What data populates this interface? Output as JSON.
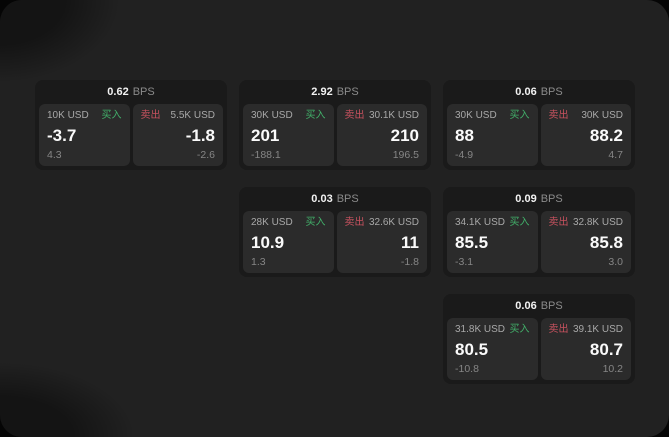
{
  "labels": {
    "bps_unit": "BPS",
    "buy": "买入",
    "sell": "卖出"
  },
  "colors": {
    "window_bg": "#212121",
    "card_bg": "#1a1a1a",
    "panel_bg": "#2b2b2b",
    "buy_accent": "#42b06a",
    "sell_accent": "#c8525f"
  },
  "cards": [
    {
      "bps": "0.62",
      "buy": {
        "amount": "10K USD",
        "price": "-3.7",
        "delta": "4.3"
      },
      "sell": {
        "amount": "5.5K USD",
        "price": "-1.8",
        "delta": "-2.6"
      }
    },
    {
      "bps": "2.92",
      "buy": {
        "amount": "30K USD",
        "price": "201",
        "delta": "-188.1"
      },
      "sell": {
        "amount": "30.1K USD",
        "price": "210",
        "delta": "196.5"
      }
    },
    {
      "bps": "0.06",
      "buy": {
        "amount": "30K USD",
        "price": "88",
        "delta": "-4.9"
      },
      "sell": {
        "amount": "30K USD",
        "price": "88.2",
        "delta": "4.7"
      }
    },
    {
      "bps": "0.03",
      "buy": {
        "amount": "28K USD",
        "price": "10.9",
        "delta": "1.3"
      },
      "sell": {
        "amount": "32.6K USD",
        "price": "11",
        "delta": "-1.8"
      }
    },
    {
      "bps": "0.09",
      "buy": {
        "amount": "34.1K USD",
        "price": "85.5",
        "delta": "-3.1"
      },
      "sell": {
        "amount": "32.8K USD",
        "price": "85.8",
        "delta": "3.0"
      }
    },
    {
      "bps": "0.06",
      "buy": {
        "amount": "31.8K USD",
        "price": "80.5",
        "delta": "-10.8"
      },
      "sell": {
        "amount": "39.1K USD",
        "price": "80.7",
        "delta": "10.2"
      }
    }
  ]
}
